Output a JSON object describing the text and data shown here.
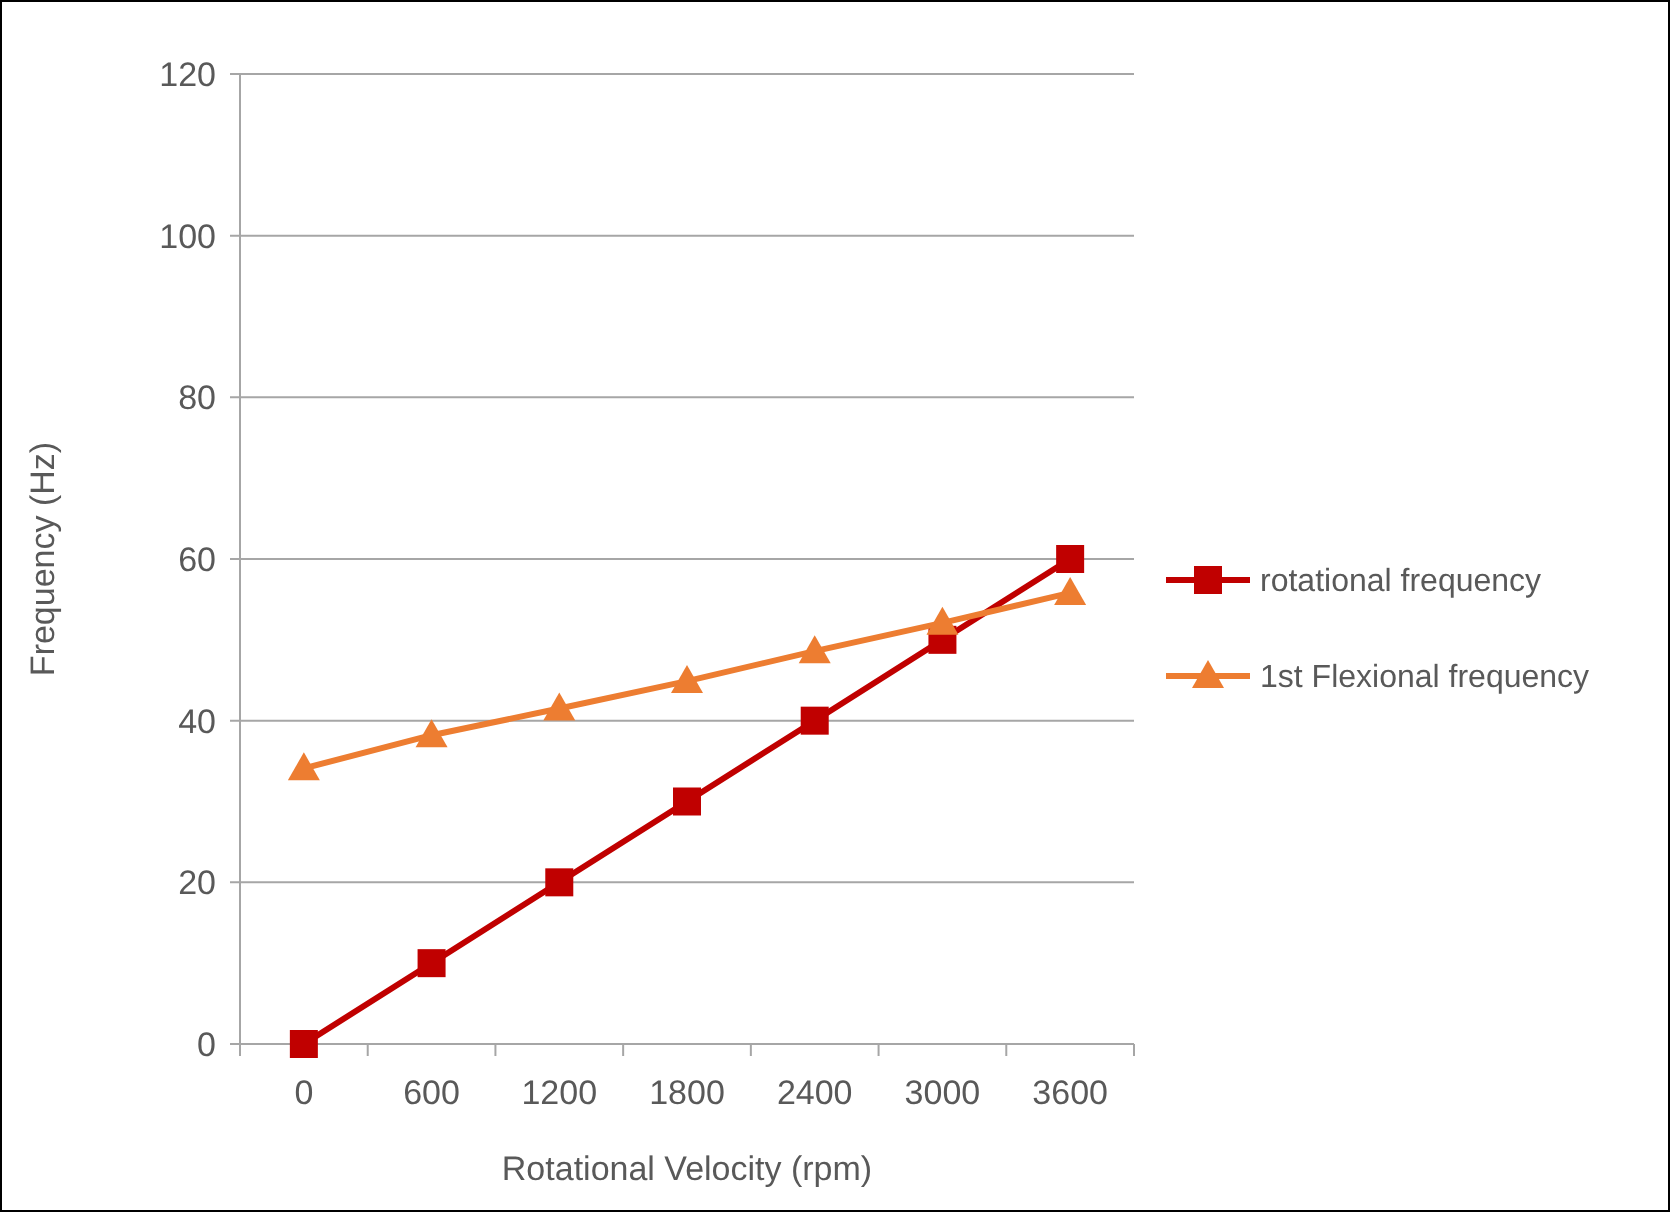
{
  "chart_data": {
    "type": "line",
    "xlabel": "Rotational Velocity (rpm)",
    "ylabel": "Frequency (Hz)",
    "categories": [
      "0",
      "600",
      "1200",
      "1800",
      "2400",
      "3000",
      "3600"
    ],
    "ylim": [
      0,
      120
    ],
    "yticks": [
      0,
      20,
      40,
      60,
      80,
      100,
      120
    ],
    "grid": "y",
    "legend": "right",
    "series": [
      {
        "name": "rotational frequency",
        "color": "#c00000",
        "marker": "square",
        "values": [
          0,
          10,
          20,
          30,
          40,
          50,
          60
        ]
      },
      {
        "name": "1st Flexional frequency",
        "color": "#ed7d31",
        "marker": "triangle",
        "values": [
          34.1,
          38.2,
          41.5,
          44.9,
          48.6,
          52.1,
          55.8
        ]
      }
    ]
  }
}
